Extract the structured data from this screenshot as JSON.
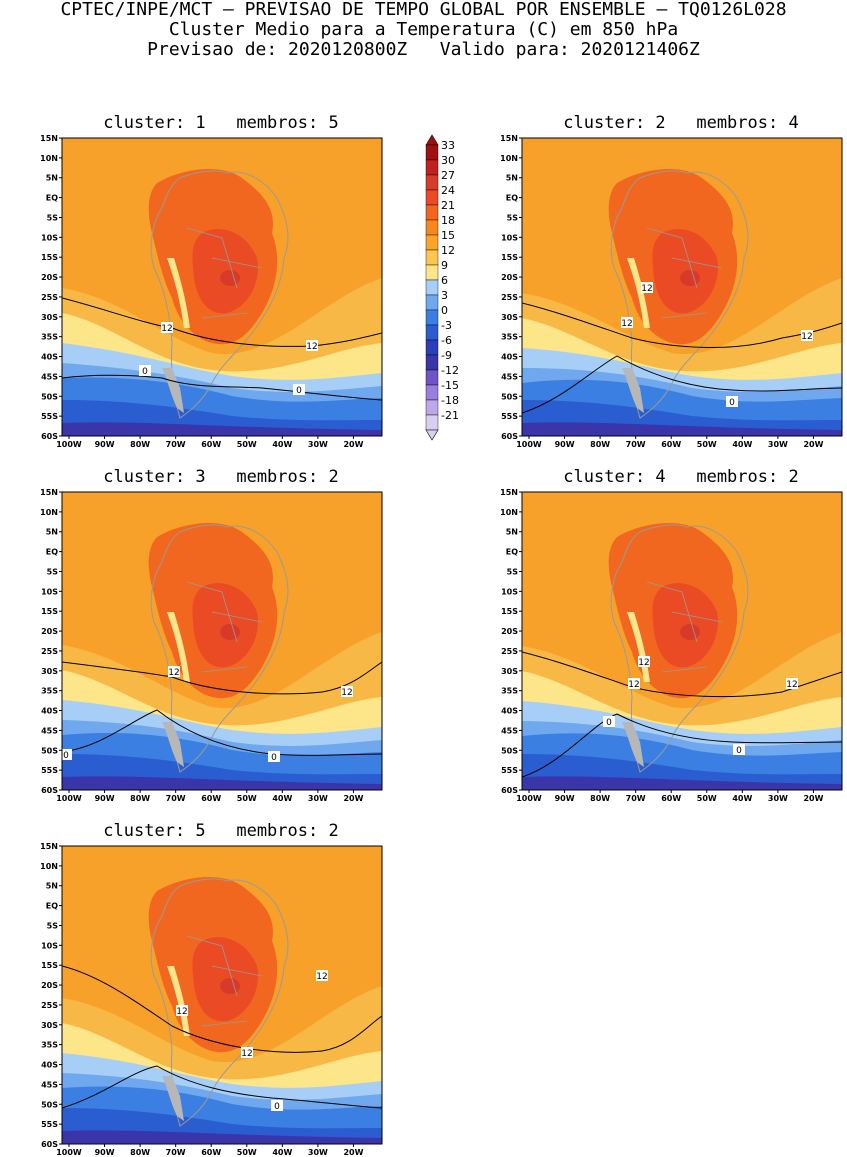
{
  "header": {
    "line1": "CPTEC/INPE/MCT – PREVISAO DE TEMPO GLOBAL POR ENSEMBLE – TQ0126L028",
    "line2": "Cluster Medio para a Temperatura (C) em 850 hPa",
    "line3": "Previsao de: 2020120800Z   Valido para: 2020121406Z"
  },
  "axes": {
    "lat_labels": [
      "15N",
      "10N",
      "5N",
      "EQ",
      "5S",
      "10S",
      "15S",
      "20S",
      "25S",
      "30S",
      "35S",
      "40S",
      "45S",
      "50S",
      "55S",
      "60S"
    ],
    "lon_labels": [
      "100W",
      "90W",
      "80W",
      "70W",
      "60W",
      "50W",
      "40W",
      "30W",
      "20W"
    ]
  },
  "panels": [
    {
      "title": "cluster: 1   membros: 5",
      "contour_labels": [
        "12",
        "12",
        "0",
        "0"
      ]
    },
    {
      "title": "cluster: 2   membros: 4",
      "contour_labels": [
        "12",
        "12",
        "12",
        "0"
      ]
    },
    {
      "title": "cluster: 3   membros: 2",
      "contour_labels": [
        "12",
        "12",
        "0",
        "0"
      ]
    },
    {
      "title": "cluster: 4   membros: 2",
      "contour_labels": [
        "12",
        "12",
        "12",
        "0",
        "0"
      ]
    },
    {
      "title": "cluster: 5   membros: 2",
      "contour_labels": [
        "12",
        "12",
        "12",
        "0"
      ]
    }
  ],
  "colorbar": {
    "labels": [
      "33",
      "30",
      "27",
      "24",
      "21",
      "18",
      "15",
      "12",
      "9",
      "6",
      "3",
      "0",
      "-3",
      "-6",
      "-9",
      "-12",
      "-15",
      "-18",
      "-21"
    ],
    "colors": [
      "#a01010",
      "#c02020",
      "#d83a2a",
      "#ea4a24",
      "#f2671f",
      "#f7891a",
      "#f8a52a",
      "#fbc550",
      "#fde58a",
      "#a6cef7",
      "#6fa8ee",
      "#3c7fe2",
      "#2a5dd0",
      "#2a3fb8",
      "#3a35a8",
      "#6f55c8",
      "#9a80dc",
      "#bda8e8",
      "#d9cdf2"
    ]
  }
}
